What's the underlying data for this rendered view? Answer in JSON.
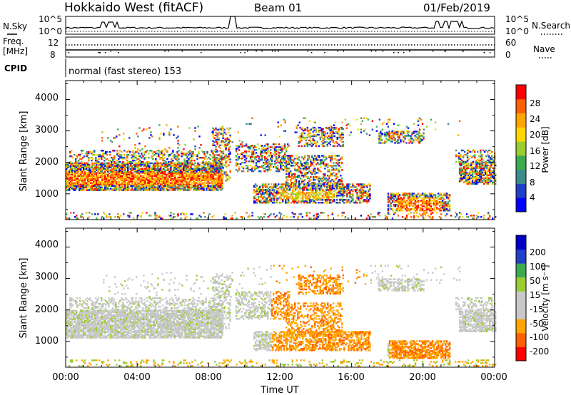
{
  "header": {
    "title": "Hokkaido West (fitACF)",
    "beam": "Beam 01",
    "date": "01/Feb/2019"
  },
  "side_labels": {
    "nsky": "N.Sky",
    "freq_line1": "Freq.",
    "freq_line2": "[MHz]",
    "cpid": "CPID",
    "nsearch": "N.Search",
    "nave": "Nave"
  },
  "noise_axis": {
    "left": [
      "10^5",
      "10^0"
    ],
    "right": [
      "10^5",
      "10^0"
    ]
  },
  "freq_axis": {
    "left": [
      "12",
      "8"
    ],
    "right": [
      "60",
      "0"
    ]
  },
  "cpid_text": "normal (fast stereo) 153",
  "colors": {
    "power": [
      "#0000ff",
      "#2040c8",
      "#3c8c8c",
      "#3caa50",
      "#9acd32",
      "#ffd700",
      "#ffa500",
      "#ff6000",
      "#ff0000"
    ],
    "velocity": [
      "#ff0000",
      "#ff6000",
      "#ffa500",
      "#c8c8c8",
      "#c8c8c8",
      "#9acd32",
      "#3caa50",
      "#2040c8",
      "#0000c8"
    ]
  },
  "chart_data": [
    {
      "type": "heatmap",
      "name": "power",
      "ylabel": "Slant Range [km]",
      "ylim": [
        180,
        4600
      ],
      "xlim": [
        0,
        24
      ],
      "yticks": [
        "4000",
        "3000",
        "2000",
        "1000"
      ],
      "colorbar_label": "Power [dB]",
      "colorbar_ticks": [
        "28",
        "24",
        "20",
        "16",
        "12",
        "8",
        "4"
      ],
      "colorbar_range": [
        0,
        30
      ]
    },
    {
      "type": "heatmap",
      "name": "velocity",
      "ylabel": "Slant Range [km]",
      "ylim": [
        180,
        4600
      ],
      "xlim": [
        0,
        24
      ],
      "yticks": [
        "4000",
        "3000",
        "2000",
        "1000"
      ],
      "colorbar_label": "Velocity [m s⁻¹]",
      "colorbar_ticks": [
        "200",
        "100",
        "50",
        "15",
        "-15",
        "-50",
        "-100",
        "-200"
      ],
      "x_ticks": [
        "00:00",
        "04:00",
        "08:00",
        "12:00",
        "16:00",
        "20:00",
        "00:00"
      ],
      "xlabel": "Time UT"
    }
  ]
}
